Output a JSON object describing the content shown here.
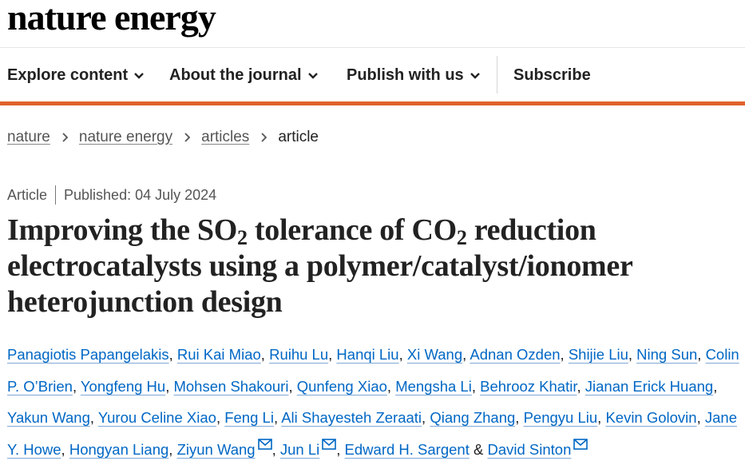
{
  "brand": {
    "name": "nature energy"
  },
  "nav": {
    "explore": "Explore content",
    "about": "About the journal",
    "publish": "Publish with us",
    "subscribe": "Subscribe"
  },
  "breadcrumb": {
    "items": [
      "nature",
      "nature energy",
      "articles"
    ],
    "current": "article"
  },
  "meta": {
    "type": "Article",
    "published": "Published: 04 July 2024"
  },
  "title": {
    "part1": "Improving the SO",
    "sub1": "2",
    "part2": " tolerance of CO",
    "sub2": "2",
    "part3": " reduction electrocatalysts using a polymer/catalyst/ionomer heterojunction design"
  },
  "authors": {
    "list": [
      "Panagiotis Papangelakis",
      "Rui Kai Miao",
      "Ruihu Lu",
      "Hanqi Liu",
      "Xi Wang",
      "Adnan Ozden",
      "Shijie Liu",
      "Ning Sun",
      "Colin P. O’Brien",
      "Yongfeng Hu",
      "Mohsen Shakouri",
      "Qunfeng Xiao",
      "Mengsha Li",
      "Behrooz Khatir",
      "Jianan Erick Huang",
      "Yakun Wang",
      "Yurou Celine Xiao",
      "Feng Li",
      "Ali Shayesteh Zeraati",
      "Qiang Zhang",
      "Pengyu Liu",
      "Kevin Golovin",
      "Jane Y. Howe",
      "Hongyan Liang",
      "Ziyun Wang",
      "Jun Li",
      "Edward H. Sargent",
      "David Sinton"
    ],
    "conjunction": "&",
    "corresponding_icon": "mail-icon"
  },
  "colors": {
    "accent": "#e0622c",
    "link": "#0067c5",
    "text": "#222222",
    "muted": "#555555"
  }
}
